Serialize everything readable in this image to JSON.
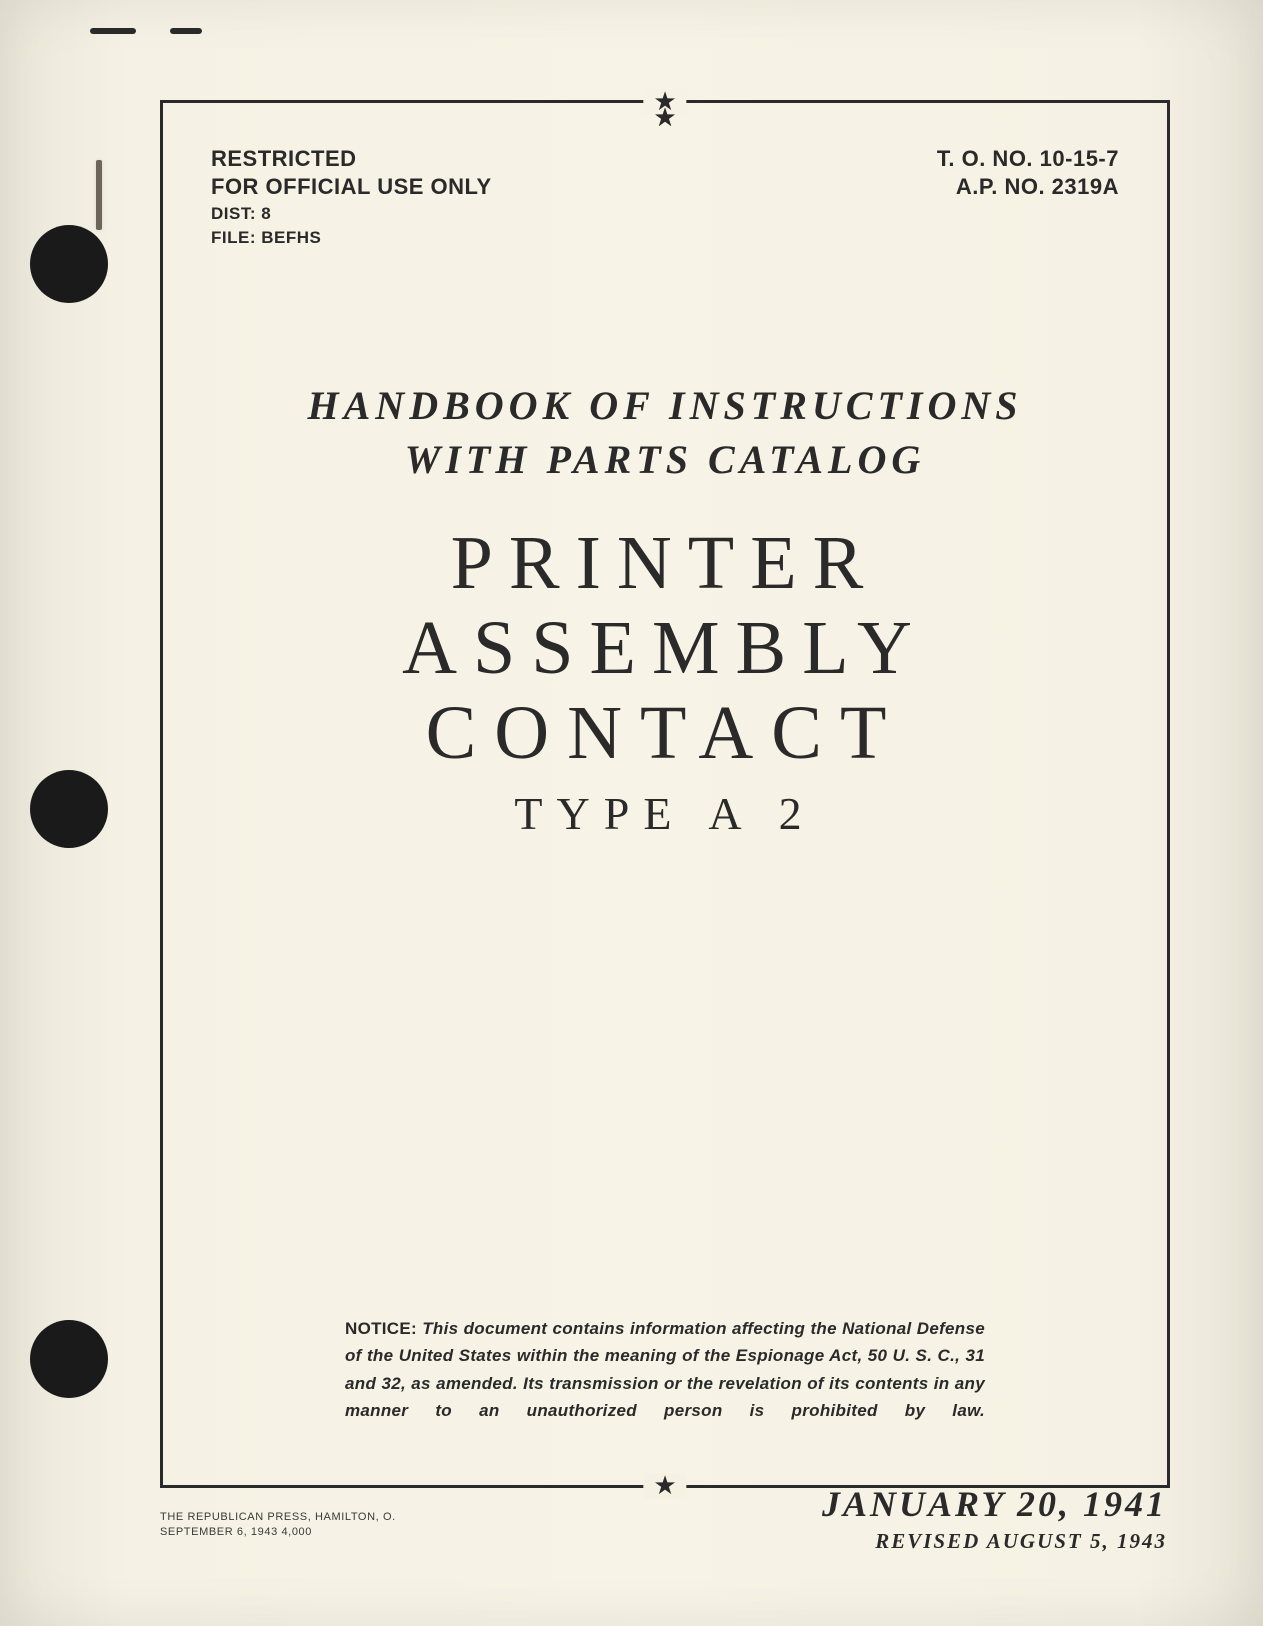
{
  "header": {
    "left": {
      "line1": "RESTRICTED",
      "line2": "FOR OFFICIAL USE ONLY",
      "dist": "DIST: 8",
      "file": "FILE: BEFHS"
    },
    "right": {
      "line1": "T. O. NO. 10-15-7",
      "line2": "A.P. NO. 2319A"
    }
  },
  "subtitle": {
    "line1": "HANDBOOK OF INSTRUCTIONS",
    "line2": "WITH PARTS CATALOG"
  },
  "title": {
    "line1": "PRINTER ASSEMBLY",
    "line2": "CONTACT",
    "line3": "TYPE A 2"
  },
  "notice": {
    "label": "NOTICE:",
    "text": "This document contains information affecting the National Defense of the United States within the meaning of the Espionage Act, 50 U. S. C., 31 and 32, as amended. Its transmission or the revelation of its contents in any manner to an unauthorized person is prohibited by law."
  },
  "printer": {
    "line1": "THE REPUBLICAN PRESS, HAMILTON, O.",
    "line2": "SEPTEMBER 6, 1943    4,000"
  },
  "dates": {
    "main": "JANUARY 20, 1941",
    "revised": "REVISED AUGUST 5, 1943"
  },
  "colors": {
    "paper": "#f6f2e5",
    "ink": "#2a2a2a",
    "hole": "#1a1a1a"
  }
}
